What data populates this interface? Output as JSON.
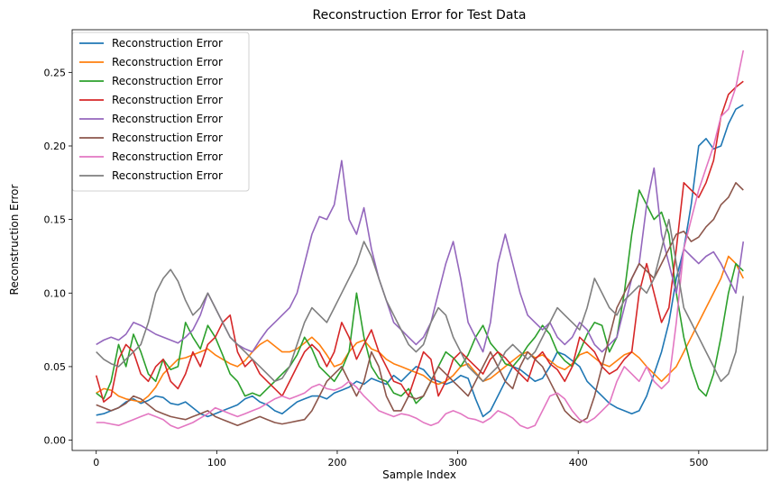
{
  "chart_data": {
    "type": "line",
    "title": "Reconstruction Error for Test Data",
    "xlabel": "Sample Index",
    "ylabel": "Reconstruction Error",
    "xlim": [
      -20,
      557
    ],
    "ylim": [
      -0.007,
      0.279
    ],
    "xticks": [
      0,
      100,
      200,
      300,
      400,
      500
    ],
    "yticks": [
      0.0,
      0.05,
      0.1,
      0.15,
      0.2,
      0.25
    ],
    "ytick_labels": [
      "0.00",
      "0.05",
      "0.10",
      "0.15",
      "0.20",
      "0.25"
    ],
    "grid": false,
    "legend": "top-left",
    "x_step": 5,
    "series": [
      {
        "name": "Reconstruction Error",
        "color": "#1f77b4",
        "values": [
          0.017,
          0.018,
          0.02,
          0.022,
          0.026,
          0.028,
          0.025,
          0.027,
          0.03,
          0.029,
          0.025,
          0.024,
          0.026,
          0.022,
          0.018,
          0.016,
          0.018,
          0.02,
          0.022,
          0.024,
          0.028,
          0.03,
          0.026,
          0.024,
          0.02,
          0.018,
          0.022,
          0.026,
          0.028,
          0.03,
          0.03,
          0.028,
          0.032,
          0.034,
          0.036,
          0.04,
          0.038,
          0.042,
          0.04,
          0.038,
          0.044,
          0.04,
          0.045,
          0.05,
          0.048,
          0.042,
          0.04,
          0.038,
          0.04,
          0.044,
          0.042,
          0.028,
          0.016,
          0.02,
          0.03,
          0.04,
          0.05,
          0.048,
          0.044,
          0.04,
          0.042,
          0.05,
          0.06,
          0.058,
          0.054,
          0.05,
          0.04,
          0.035,
          0.03,
          0.025,
          0.022,
          0.02,
          0.018,
          0.02,
          0.03,
          0.045,
          0.06,
          0.08,
          0.11,
          0.13,
          0.16,
          0.2,
          0.205,
          0.198,
          0.2,
          0.215,
          0.225,
          0.228
        ]
      },
      {
        "name": "Reconstruction Error",
        "color": "#ff7f0e",
        "values": [
          0.032,
          0.035,
          0.034,
          0.03,
          0.028,
          0.027,
          0.026,
          0.03,
          0.036,
          0.045,
          0.05,
          0.055,
          0.056,
          0.058,
          0.06,
          0.062,
          0.058,
          0.055,
          0.052,
          0.05,
          0.054,
          0.06,
          0.065,
          0.068,
          0.064,
          0.06,
          0.06,
          0.062,
          0.066,
          0.07,
          0.065,
          0.058,
          0.05,
          0.052,
          0.06,
          0.066,
          0.068,
          0.062,
          0.06,
          0.055,
          0.052,
          0.05,
          0.048,
          0.046,
          0.044,
          0.04,
          0.038,
          0.04,
          0.044,
          0.05,
          0.052,
          0.046,
          0.04,
          0.042,
          0.046,
          0.05,
          0.054,
          0.058,
          0.06,
          0.056,
          0.058,
          0.054,
          0.05,
          0.048,
          0.052,
          0.058,
          0.06,
          0.056,
          0.052,
          0.05,
          0.054,
          0.058,
          0.06,
          0.056,
          0.05,
          0.045,
          0.04,
          0.045,
          0.05,
          0.06,
          0.07,
          0.08,
          0.09,
          0.1,
          0.11,
          0.125,
          0.12,
          0.11
        ]
      },
      {
        "name": "Reconstruction Error",
        "color": "#2ca02c",
        "values": [
          0.032,
          0.028,
          0.04,
          0.065,
          0.05,
          0.072,
          0.06,
          0.045,
          0.04,
          0.055,
          0.048,
          0.05,
          0.08,
          0.07,
          0.062,
          0.078,
          0.07,
          0.058,
          0.045,
          0.04,
          0.03,
          0.032,
          0.03,
          0.035,
          0.04,
          0.045,
          0.05,
          0.058,
          0.07,
          0.062,
          0.05,
          0.045,
          0.04,
          0.048,
          0.06,
          0.1,
          0.07,
          0.05,
          0.042,
          0.04,
          0.032,
          0.03,
          0.035,
          0.025,
          0.03,
          0.04,
          0.05,
          0.06,
          0.056,
          0.05,
          0.058,
          0.07,
          0.078,
          0.066,
          0.06,
          0.052,
          0.05,
          0.056,
          0.064,
          0.07,
          0.078,
          0.072,
          0.06,
          0.054,
          0.05,
          0.06,
          0.072,
          0.08,
          0.078,
          0.06,
          0.07,
          0.1,
          0.14,
          0.17,
          0.16,
          0.15,
          0.155,
          0.14,
          0.1,
          0.07,
          0.05,
          0.035,
          0.03,
          0.045,
          0.07,
          0.1,
          0.12,
          0.115
        ]
      },
      {
        "name": "Reconstruction Error",
        "color": "#d62728",
        "values": [
          0.044,
          0.026,
          0.03,
          0.055,
          0.065,
          0.06,
          0.045,
          0.04,
          0.05,
          0.055,
          0.04,
          0.035,
          0.045,
          0.06,
          0.05,
          0.065,
          0.07,
          0.08,
          0.085,
          0.06,
          0.05,
          0.055,
          0.045,
          0.04,
          0.035,
          0.03,
          0.04,
          0.05,
          0.06,
          0.065,
          0.06,
          0.05,
          0.06,
          0.08,
          0.07,
          0.055,
          0.065,
          0.075,
          0.06,
          0.05,
          0.04,
          0.038,
          0.03,
          0.045,
          0.06,
          0.055,
          0.03,
          0.04,
          0.055,
          0.06,
          0.055,
          0.05,
          0.045,
          0.055,
          0.06,
          0.056,
          0.05,
          0.045,
          0.04,
          0.055,
          0.06,
          0.052,
          0.048,
          0.04,
          0.05,
          0.07,
          0.065,
          0.06,
          0.05,
          0.045,
          0.048,
          0.055,
          0.06,
          0.1,
          0.12,
          0.1,
          0.08,
          0.09,
          0.13,
          0.175,
          0.17,
          0.165,
          0.175,
          0.19,
          0.22,
          0.235,
          0.24,
          0.244
        ]
      },
      {
        "name": "Reconstruction Error",
        "color": "#9467bd",
        "values": [
          0.065,
          0.068,
          0.07,
          0.068,
          0.072,
          0.08,
          0.078,
          0.075,
          0.072,
          0.07,
          0.068,
          0.066,
          0.07,
          0.075,
          0.085,
          0.1,
          0.09,
          0.08,
          0.07,
          0.065,
          0.062,
          0.06,
          0.068,
          0.075,
          0.08,
          0.085,
          0.09,
          0.1,
          0.12,
          0.14,
          0.152,
          0.15,
          0.16,
          0.19,
          0.15,
          0.14,
          0.158,
          0.13,
          0.11,
          0.095,
          0.08,
          0.075,
          0.07,
          0.065,
          0.07,
          0.08,
          0.1,
          0.12,
          0.135,
          0.11,
          0.08,
          0.07,
          0.06,
          0.08,
          0.12,
          0.14,
          0.12,
          0.1,
          0.085,
          0.08,
          0.075,
          0.08,
          0.07,
          0.065,
          0.07,
          0.08,
          0.075,
          0.065,
          0.06,
          0.065,
          0.07,
          0.09,
          0.11,
          0.12,
          0.16,
          0.185,
          0.14,
          0.12,
          0.1,
          0.13,
          0.125,
          0.12,
          0.125,
          0.128,
          0.12,
          0.11,
          0.1,
          0.135
        ]
      },
      {
        "name": "Reconstruction Error",
        "color": "#8c564b",
        "values": [
          0.024,
          0.022,
          0.02,
          0.022,
          0.025,
          0.03,
          0.028,
          0.024,
          0.02,
          0.018,
          0.016,
          0.015,
          0.014,
          0.016,
          0.018,
          0.02,
          0.016,
          0.014,
          0.012,
          0.01,
          0.012,
          0.014,
          0.016,
          0.014,
          0.012,
          0.011,
          0.012,
          0.013,
          0.014,
          0.02,
          0.03,
          0.04,
          0.045,
          0.05,
          0.04,
          0.03,
          0.04,
          0.06,
          0.05,
          0.03,
          0.02,
          0.02,
          0.03,
          0.028,
          0.03,
          0.04,
          0.05,
          0.045,
          0.04,
          0.035,
          0.03,
          0.04,
          0.05,
          0.06,
          0.05,
          0.04,
          0.035,
          0.05,
          0.06,
          0.055,
          0.05,
          0.04,
          0.03,
          0.02,
          0.015,
          0.012,
          0.015,
          0.03,
          0.05,
          0.07,
          0.09,
          0.1,
          0.11,
          0.12,
          0.115,
          0.11,
          0.12,
          0.13,
          0.14,
          0.142,
          0.135,
          0.138,
          0.145,
          0.15,
          0.16,
          0.165,
          0.175,
          0.17
        ]
      },
      {
        "name": "Reconstruction Error",
        "color": "#e377c2",
        "values": [
          0.012,
          0.012,
          0.011,
          0.01,
          0.012,
          0.014,
          0.016,
          0.018,
          0.016,
          0.014,
          0.01,
          0.008,
          0.01,
          0.012,
          0.015,
          0.018,
          0.022,
          0.02,
          0.018,
          0.016,
          0.018,
          0.02,
          0.022,
          0.025,
          0.028,
          0.03,
          0.028,
          0.03,
          0.032,
          0.036,
          0.038,
          0.035,
          0.034,
          0.036,
          0.04,
          0.036,
          0.03,
          0.025,
          0.02,
          0.018,
          0.016,
          0.018,
          0.017,
          0.015,
          0.012,
          0.01,
          0.012,
          0.018,
          0.02,
          0.018,
          0.015,
          0.014,
          0.012,
          0.015,
          0.02,
          0.018,
          0.015,
          0.01,
          0.008,
          0.01,
          0.02,
          0.03,
          0.032,
          0.028,
          0.02,
          0.014,
          0.012,
          0.015,
          0.02,
          0.025,
          0.04,
          0.05,
          0.045,
          0.04,
          0.05,
          0.04,
          0.035,
          0.04,
          0.08,
          0.13,
          0.15,
          0.17,
          0.185,
          0.2,
          0.22,
          0.225,
          0.24,
          0.265
        ]
      },
      {
        "name": "Reconstruction Error",
        "color": "#7f7f7f",
        "values": [
          0.06,
          0.055,
          0.052,
          0.05,
          0.055,
          0.06,
          0.065,
          0.08,
          0.1,
          0.11,
          0.116,
          0.108,
          0.095,
          0.085,
          0.09,
          0.1,
          0.09,
          0.08,
          0.07,
          0.065,
          0.06,
          0.055,
          0.05,
          0.045,
          0.04,
          0.042,
          0.05,
          0.065,
          0.08,
          0.09,
          0.085,
          0.08,
          0.09,
          0.1,
          0.11,
          0.12,
          0.135,
          0.125,
          0.11,
          0.095,
          0.085,
          0.075,
          0.065,
          0.06,
          0.065,
          0.08,
          0.09,
          0.085,
          0.07,
          0.06,
          0.05,
          0.045,
          0.04,
          0.045,
          0.05,
          0.06,
          0.065,
          0.06,
          0.055,
          0.06,
          0.07,
          0.08,
          0.09,
          0.085,
          0.08,
          0.075,
          0.09,
          0.11,
          0.1,
          0.09,
          0.085,
          0.095,
          0.1,
          0.105,
          0.1,
          0.11,
          0.13,
          0.15,
          0.12,
          0.09,
          0.08,
          0.07,
          0.06,
          0.05,
          0.04,
          0.045,
          0.06,
          0.098
        ]
      }
    ]
  }
}
